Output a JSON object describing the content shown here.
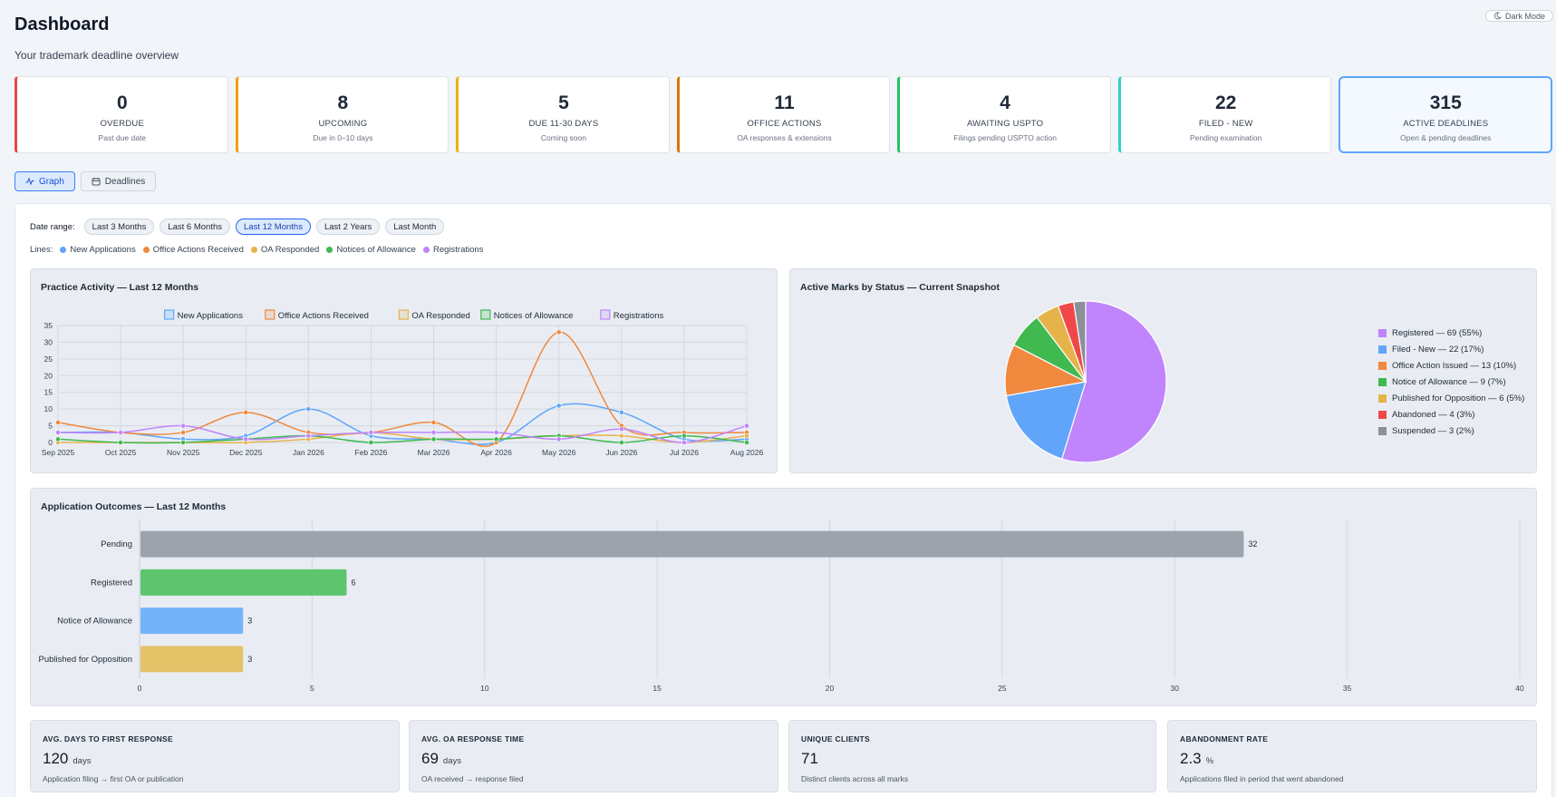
{
  "page": {
    "title": "Dashboard",
    "subtitle": "Your trademark deadline overview",
    "dark_mode_label": "Dark Mode"
  },
  "stats": [
    {
      "value": "0",
      "label": "OVERDUE",
      "sub": "Past due date",
      "color": "#ef4444"
    },
    {
      "value": "8",
      "label": "UPCOMING",
      "sub": "Due in 0–10 days",
      "color": "#f59e0b"
    },
    {
      "value": "5",
      "label": "DUE 11-30 DAYS",
      "sub": "Coming soon",
      "color": "#eab308"
    },
    {
      "value": "11",
      "label": "OFFICE ACTIONS",
      "sub": "OA responses & extensions",
      "color": "#d97706"
    },
    {
      "value": "4",
      "label": "AWAITING USPTO",
      "sub": "Filings pending USPTO action",
      "color": "#22c55e"
    },
    {
      "value": "22",
      "label": "FILED - NEW",
      "sub": "Pending examination",
      "color": "#2dd4bf"
    },
    {
      "value": "315",
      "label": "ACTIVE DEADLINES",
      "sub": "Open & pending deadlines",
      "color": "#60a5fa"
    }
  ],
  "view_toggle": {
    "graph": "Graph",
    "deadlines": "Deadlines"
  },
  "date_range": {
    "label": "Date range:",
    "options": [
      "Last 3 Months",
      "Last 6 Months",
      "Last 12 Months",
      "Last 2 Years",
      "Last Month"
    ],
    "selected": "Last 12 Months"
  },
  "lines_filter": {
    "label": "Lines:",
    "items": [
      {
        "name": "New Applications",
        "color": "#60a5fa"
      },
      {
        "name": "Office Actions Received",
        "color": "#f0883e"
      },
      {
        "name": "OA Responded",
        "color": "#e6b34a"
      },
      {
        "name": "Notices of Allowance",
        "color": "#3fb950"
      },
      {
        "name": "Registrations",
        "color": "#c084fc"
      }
    ]
  },
  "activity_chart": {
    "title": "Practice Activity — Last 12 Months"
  },
  "pie_chart": {
    "title": "Active Marks by Status — Current Snapshot"
  },
  "bar_chart": {
    "title": "Application Outcomes — Last 12 Months"
  },
  "chart_data": [
    {
      "type": "line",
      "title": "Practice Activity — Last 12 Months",
      "categories": [
        "Sep 2025",
        "Oct 2025",
        "Nov 2025",
        "Dec 2025",
        "Jan 2026",
        "Feb 2026",
        "Mar 2026",
        "Apr 2026",
        "May 2026",
        "Jun 2026",
        "Jul 2026",
        "Aug 2026"
      ],
      "ylim": [
        0,
        35
      ],
      "yticks": [
        0,
        5,
        10,
        15,
        20,
        25,
        30,
        35
      ],
      "grid": true,
      "legend": "top-center",
      "series": [
        {
          "name": "New Applications",
          "color": "#60a5fa",
          "values": [
            3,
            3,
            1,
            2,
            10,
            2,
            1,
            0,
            11,
            9,
            1,
            1
          ]
        },
        {
          "name": "Office Actions Received",
          "color": "#f0883e",
          "values": [
            6,
            3,
            3,
            9,
            3,
            3,
            6,
            0,
            33,
            5,
            3,
            3
          ]
        },
        {
          "name": "OA Responded",
          "color": "#e6b34a",
          "values": [
            0,
            0,
            0,
            0,
            1,
            3,
            1,
            1,
            2,
            2,
            0,
            2
          ]
        },
        {
          "name": "Notices of Allowance",
          "color": "#3fb950",
          "values": [
            1,
            0,
            0,
            1,
            2,
            0,
            1,
            1,
            2,
            0,
            2,
            0
          ]
        },
        {
          "name": "Registrations",
          "color": "#c084fc",
          "values": [
            3,
            3,
            5,
            1,
            2,
            3,
            3,
            3,
            1,
            4,
            0,
            5
          ]
        }
      ]
    },
    {
      "type": "pie",
      "title": "Active Marks by Status — Current Snapshot",
      "legend": "right",
      "slices": [
        {
          "label": "Registered — 69 (55%)",
          "value": 69,
          "color": "#c084fc"
        },
        {
          "label": "Filed - New — 22 (17%)",
          "value": 22,
          "color": "#60a5fa"
        },
        {
          "label": "Office Action Issued — 13 (10%)",
          "value": 13,
          "color": "#f0883e"
        },
        {
          "label": "Notice of Allowance — 9 (7%)",
          "value": 9,
          "color": "#3fb950"
        },
        {
          "label": "Published for Opposition — 6 (5%)",
          "value": 6,
          "color": "#e6b34a"
        },
        {
          "label": "Abandoned — 4 (3%)",
          "value": 4,
          "color": "#f04848"
        },
        {
          "label": "Suspended — 3 (2%)",
          "value": 3,
          "color": "#8b9099"
        }
      ]
    },
    {
      "type": "bar",
      "orientation": "horizontal",
      "title": "Application Outcomes — Last 12 Months",
      "categories": [
        "Pending",
        "Registered",
        "Notice of Allowance",
        "Published for Opposition"
      ],
      "values": [
        32,
        6,
        3,
        3
      ],
      "colors": [
        "#9ca3ad",
        "#5ec46e",
        "#74b3f9",
        "#e4c267"
      ],
      "xlim": [
        0,
        40
      ],
      "xticks": [
        0,
        5,
        10,
        15,
        20,
        25,
        30,
        35,
        40
      ],
      "grid": true
    }
  ],
  "metrics": [
    {
      "title": "AVG. DAYS TO FIRST RESPONSE",
      "value": "120",
      "unit": "days",
      "sub": "Application filing → first OA or publication"
    },
    {
      "title": "AVG. OA RESPONSE TIME",
      "value": "69",
      "unit": "days",
      "sub": "OA received → response filed"
    },
    {
      "title": "UNIQUE CLIENTS",
      "value": "71",
      "unit": "",
      "sub": "Distinct clients across all marks"
    },
    {
      "title": "ABANDONMENT RATE",
      "value": "2.3",
      "unit": "%",
      "sub": "Applications filed in period that went abandoned"
    }
  ]
}
